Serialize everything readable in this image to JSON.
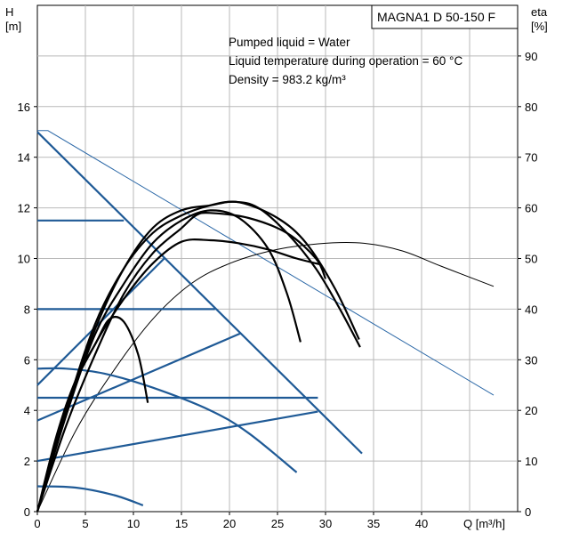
{
  "chart_data": {
    "type": "line",
    "model_label": "MAGNA1 D 50-150 F",
    "notes": [
      "Pumped liquid = Water",
      "Liquid temperature during operation = 60 °C",
      "Density = 983.2 kg/m³"
    ],
    "y_left_label": [
      "H",
      "[m]"
    ],
    "y_right_label": [
      "eta",
      "[%]"
    ],
    "x_label": "Q [m³/h]",
    "x_ticks": [
      "0",
      "5",
      "10",
      "15",
      "20",
      "25",
      "30",
      "35",
      "40"
    ],
    "y_left_ticks": [
      "0",
      "2",
      "4",
      "6",
      "8",
      "10",
      "12",
      "14",
      "16"
    ],
    "y_right_ticks": [
      "0",
      "10",
      "20",
      "30",
      "40",
      "50",
      "60",
      "70",
      "80",
      "90"
    ],
    "xlim": [
      0,
      50
    ],
    "ylim_left": [
      0,
      20
    ],
    "ylim_right": [
      0,
      100
    ],
    "grid": true,
    "colors": {
      "pump_curve": "#1f5a96",
      "efficiency": "#000000",
      "system_line": "#2e6aa8",
      "grid": "#b9b9b9"
    },
    "pump_curves_H": [
      {
        "points": [
          [
            0,
            15
          ],
          [
            33.8,
            2.3
          ]
        ]
      },
      {
        "points": [
          [
            0,
            11.5
          ],
          [
            9,
            11.5
          ]
        ]
      },
      {
        "points": [
          [
            0,
            8
          ],
          [
            18.5,
            8
          ]
        ]
      },
      {
        "points": [
          [
            0,
            4.5
          ],
          [
            29.2,
            4.5
          ]
        ]
      },
      {
        "points": [
          [
            0,
            5
          ],
          [
            13.2,
            10
          ]
        ]
      },
      {
        "points": [
          [
            0,
            3.6
          ],
          [
            21.2,
            7.05
          ]
        ]
      },
      {
        "points": [
          [
            0,
            2
          ],
          [
            29.2,
            3.95
          ]
        ]
      },
      {
        "points": [
          [
            0,
            5.65
          ],
          [
            3,
            5.65
          ],
          [
            7,
            5.45
          ],
          [
            12,
            4.9
          ],
          [
            18,
            4.0
          ],
          [
            22,
            3.1
          ],
          [
            27,
            1.55
          ]
        ]
      },
      {
        "points": [
          [
            0,
            1.0
          ],
          [
            4,
            0.95
          ],
          [
            8,
            0.65
          ],
          [
            11,
            0.25
          ]
        ]
      }
    ],
    "efficiency_curves_eta": [
      {
        "points": [
          [
            0,
            0
          ],
          [
            2,
            15
          ],
          [
            4,
            26
          ],
          [
            6,
            33
          ],
          [
            7.5,
            38
          ],
          [
            9,
            37.5
          ],
          [
            10.5,
            31
          ],
          [
            11.5,
            21.5
          ]
        ]
      },
      {
        "points": [
          [
            0,
            0
          ],
          [
            3,
            21
          ],
          [
            6,
            33
          ],
          [
            9,
            42
          ],
          [
            12,
            49
          ],
          [
            15,
            53.3
          ],
          [
            18,
            53.6
          ],
          [
            21,
            53
          ],
          [
            24,
            51.8
          ],
          [
            27,
            50
          ],
          [
            29.5,
            48.8
          ]
        ]
      },
      {
        "points": [
          [
            0,
            0
          ],
          [
            3,
            19
          ],
          [
            6,
            35
          ],
          [
            9,
            45
          ],
          [
            12,
            53
          ],
          [
            15,
            57.5
          ],
          [
            18,
            59.5
          ],
          [
            21,
            58
          ],
          [
            24,
            52
          ],
          [
            26,
            43
          ],
          [
            27.4,
            33.5
          ]
        ]
      },
      {
        "points": [
          [
            0,
            0
          ],
          [
            3,
            20
          ],
          [
            6,
            37
          ],
          [
            9,
            48
          ],
          [
            12,
            55
          ],
          [
            15,
            58.5
          ],
          [
            18,
            60.5
          ],
          [
            20.5,
            61.2
          ],
          [
            23,
            60
          ],
          [
            26,
            55
          ],
          [
            29,
            48
          ],
          [
            31.5,
            40
          ],
          [
            33.6,
            32.5
          ]
        ]
      },
      {
        "points": [
          [
            0,
            0
          ],
          [
            3,
            20
          ],
          [
            6,
            36
          ],
          [
            9,
            48
          ],
          [
            12,
            56
          ],
          [
            15,
            59.5
          ],
          [
            18,
            60.5
          ],
          [
            21,
            61.1
          ],
          [
            25,
            58
          ],
          [
            28,
            53
          ],
          [
            31,
            44
          ],
          [
            33.5,
            34
          ]
        ]
      },
      {
        "points": [
          [
            0,
            0
          ],
          [
            3,
            17
          ],
          [
            6,
            31
          ],
          [
            9,
            43
          ],
          [
            12,
            51
          ],
          [
            15,
            56
          ],
          [
            16.5,
            58.5
          ],
          [
            18,
            59
          ],
          [
            22,
            58
          ],
          [
            26,
            55
          ],
          [
            29,
            50
          ],
          [
            30,
            46
          ]
        ]
      }
    ],
    "system_curves_eta": [
      {
        "points": [
          [
            0,
            0
          ],
          [
            4,
            16
          ],
          [
            8,
            28
          ],
          [
            12,
            38
          ],
          [
            16,
            45
          ],
          [
            20,
            49
          ],
          [
            25,
            51.8
          ],
          [
            30,
            53
          ],
          [
            34,
            53
          ],
          [
            38,
            51.5
          ],
          [
            42,
            48.5
          ],
          [
            47.5,
            44.5
          ]
        ]
      }
    ],
    "envelope_line_H": [
      [
        0,
        15.05
      ],
      [
        1.1,
        15.05
      ],
      [
        47.5,
        4.6
      ]
    ]
  }
}
